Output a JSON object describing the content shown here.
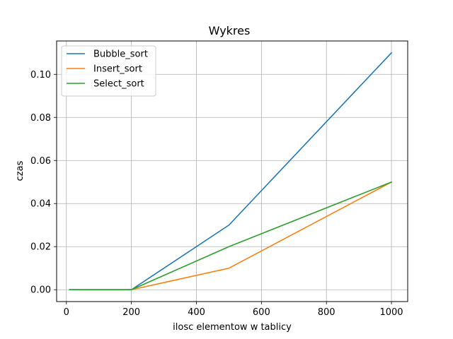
{
  "chart_data": {
    "type": "line",
    "title": "Wykres",
    "xlabel": "ilosc elementow w tablicy",
    "ylabel": "czas",
    "x": [
      10,
      200,
      500,
      1000
    ],
    "xlim": [
      -30,
      1050
    ],
    "ylim": [
      -0.0055,
      0.1155
    ],
    "xticks": [
      0,
      200,
      400,
      600,
      800,
      1000
    ],
    "xtick_labels": [
      "0",
      "200",
      "400",
      "600",
      "800",
      "1000"
    ],
    "yticks": [
      0.0,
      0.02,
      0.04,
      0.06,
      0.08,
      0.1
    ],
    "ytick_labels": [
      "0.00",
      "0.02",
      "0.04",
      "0.06",
      "0.08",
      "0.10"
    ],
    "grid": true,
    "legend_position": "top-left",
    "series": [
      {
        "name": "Bubble_sort",
        "color": "#1f77b4",
        "values": [
          0.0,
          0.0,
          0.03,
          0.11
        ]
      },
      {
        "name": "Insert_sort",
        "color": "#ff7f0e",
        "values": [
          0.0,
          0.0,
          0.01,
          0.05
        ]
      },
      {
        "name": "Select_sort",
        "color": "#2ca02c",
        "values": [
          0.0,
          0.0,
          0.02,
          0.05
        ]
      }
    ]
  }
}
